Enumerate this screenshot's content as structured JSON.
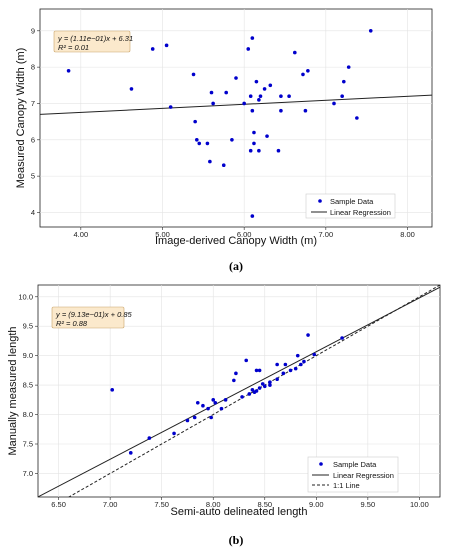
{
  "charts": [
    {
      "panel_label": "(a)",
      "chart_data": {
        "type": "scatter",
        "xlabel": "Image-derived Canopy Width (m)",
        "ylabel": "Measured Canopy Width (m)",
        "xlim": [
          3.5,
          8.3
        ],
        "ylim": [
          3.6,
          9.6
        ],
        "xticks": [
          4.0,
          5.0,
          6.0,
          7.0,
          8.0
        ],
        "xtick_labels": [
          "4.00",
          "5.00",
          "6.00",
          "7.00",
          "8.00"
        ],
        "yticks": [
          4,
          5,
          6,
          7,
          8,
          9
        ],
        "ytick_labels": [
          "4",
          "5",
          "6",
          "7",
          "8",
          "9"
        ],
        "grid": true,
        "legend_position": "bottom-right",
        "annotation": {
          "line1": "y = (1.11e−01)x + 6.31",
          "line2": "R² = 0.01"
        },
        "colors": {
          "points": "#0000cc",
          "regression": "#222222"
        },
        "series": [
          {
            "name": "Sample Data",
            "kind": "points",
            "points": [
              [
                3.85,
                7.9
              ],
              [
                4.62,
                7.4
              ],
              [
                4.88,
                8.5
              ],
              [
                5.05,
                8.6
              ],
              [
                5.1,
                6.9
              ],
              [
                5.38,
                7.8
              ],
              [
                5.4,
                6.5
              ],
              [
                5.42,
                6.0
              ],
              [
                5.45,
                5.9
              ],
              [
                5.55,
                5.9
              ],
              [
                5.58,
                5.4
              ],
              [
                5.6,
                7.3
              ],
              [
                5.62,
                7.0
              ],
              [
                5.75,
                5.3
              ],
              [
                5.78,
                7.3
              ],
              [
                5.85,
                6.0
              ],
              [
                5.9,
                7.7
              ],
              [
                6.0,
                7.0
              ],
              [
                6.05,
                8.5
              ],
              [
                6.08,
                7.2
              ],
              [
                6.1,
                8.8
              ],
              [
                6.1,
                6.8
              ],
              [
                6.12,
                6.2
              ],
              [
                6.12,
                5.9
              ],
              [
                6.15,
                7.6
              ],
              [
                6.18,
                7.1
              ],
              [
                6.2,
                7.2
              ],
              [
                6.25,
                7.4
              ],
              [
                6.28,
                6.1
              ],
              [
                6.32,
                7.5
              ],
              [
                6.1,
                3.9
              ],
              [
                6.18,
                5.7
              ],
              [
                6.42,
                5.7
              ],
              [
                6.45,
                6.8
              ],
              [
                6.45,
                7.2
              ],
              [
                6.55,
                7.2
              ],
              [
                6.62,
                8.4
              ],
              [
                6.72,
                7.8
              ],
              [
                6.75,
                6.8
              ],
              [
                6.78,
                7.9
              ],
              [
                7.1,
                7.0
              ],
              [
                7.2,
                7.2
              ],
              [
                7.22,
                7.6
              ],
              [
                7.28,
                8.0
              ],
              [
                7.38,
                6.6
              ],
              [
                7.55,
                9.0
              ],
              [
                6.08,
                5.7
              ]
            ]
          },
          {
            "name": "Linear Regression",
            "kind": "line",
            "slope": 0.111,
            "intercept": 6.31
          }
        ]
      }
    },
    {
      "panel_label": "(b)",
      "chart_data": {
        "type": "scatter",
        "xlabel": "Semi-auto delineated length",
        "ylabel": "Manually measured length",
        "xlim": [
          6.3,
          10.2
        ],
        "ylim": [
          6.6,
          10.2
        ],
        "xticks": [
          6.5,
          7.0,
          7.5,
          8.0,
          8.5,
          9.0,
          9.5,
          10.0
        ],
        "xtick_labels": [
          "6.50",
          "7.00",
          "7.50",
          "8.00",
          "8.50",
          "9.00",
          "9.50",
          "10.00"
        ],
        "yticks": [
          7.0,
          7.5,
          8.0,
          8.5,
          9.0,
          9.5,
          10.0
        ],
        "ytick_labels": [
          "7.0",
          "7.5",
          "8.0",
          "8.5",
          "9.0",
          "9.5",
          "10.0"
        ],
        "grid": true,
        "legend_position": "bottom-right",
        "annotation": {
          "line1": "y = (9.13e−01)x + 0.85",
          "line2": "R² = 0.88"
        },
        "colors": {
          "points": "#0000cc",
          "regression": "#222222",
          "identity": "#222222"
        },
        "series": [
          {
            "name": "Sample Data",
            "kind": "points",
            "points": [
              [
                7.02,
                8.42
              ],
              [
                7.2,
                7.35
              ],
              [
                7.38,
                7.6
              ],
              [
                7.62,
                7.68
              ],
              [
                7.75,
                7.9
              ],
              [
                7.82,
                7.95
              ],
              [
                7.85,
                8.2
              ],
              [
                7.9,
                8.15
              ],
              [
                7.95,
                8.1
              ],
              [
                7.98,
                7.95
              ],
              [
                8.0,
                8.25
              ],
              [
                8.02,
                8.2
              ],
              [
                8.08,
                8.1
              ],
              [
                8.12,
                8.25
              ],
              [
                8.2,
                8.58
              ],
              [
                8.22,
                8.7
              ],
              [
                8.28,
                8.3
              ],
              [
                8.32,
                8.92
              ],
              [
                8.35,
                8.35
              ],
              [
                8.38,
                8.42
              ],
              [
                8.4,
                8.38
              ],
              [
                8.42,
                8.4
              ],
              [
                8.42,
                8.75
              ],
              [
                8.45,
                8.45
              ],
              [
                8.45,
                8.75
              ],
              [
                8.48,
                8.52
              ],
              [
                8.5,
                8.48
              ],
              [
                8.55,
                8.55
              ],
              [
                8.55,
                8.5
              ],
              [
                8.62,
                8.6
              ],
              [
                8.68,
                8.7
              ],
              [
                8.7,
                8.85
              ],
              [
                8.75,
                8.75
              ],
              [
                8.8,
                8.78
              ],
              [
                8.82,
                9.0
              ],
              [
                8.85,
                8.85
              ],
              [
                8.88,
                8.9
              ],
              [
                8.92,
                9.35
              ],
              [
                8.98,
                9.02
              ],
              [
                9.25,
                9.3
              ],
              [
                8.4,
                8.38
              ],
              [
                8.62,
                8.85
              ]
            ]
          },
          {
            "name": "Linear Regression",
            "kind": "line",
            "slope": 0.913,
            "intercept": 0.85
          },
          {
            "name": "1:1 Line",
            "kind": "dashed-line",
            "slope": 1.0,
            "intercept": 0.0
          }
        ]
      }
    }
  ]
}
